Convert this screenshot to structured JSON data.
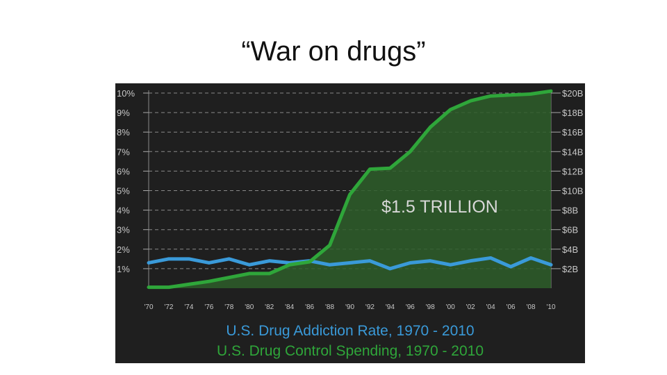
{
  "slide": {
    "title": "“War on drugs”"
  },
  "chart_data": {
    "type": "line",
    "annotation": "$1.5 TRILLION",
    "captions": [
      {
        "text": "U.S. Drug Addiction Rate, 1970 - 2010",
        "color": "#3a9ad9"
      },
      {
        "text": "U.S. Drug Control Spending, 1970 - 2010",
        "color": "#2fa63a"
      }
    ],
    "x": [
      "'70",
      "'72",
      "'74",
      "'76",
      "'78",
      "'80",
      "'82",
      "'84",
      "'86",
      "'88",
      "'90",
      "'92",
      "'94",
      "'96",
      "'98",
      "'00",
      "'02",
      "'04",
      "'06",
      "'08",
      "'10"
    ],
    "left_axis": {
      "ticks": [
        "1%",
        "2%",
        "3%",
        "4%",
        "5%",
        "6%",
        "7%",
        "8%",
        "9%",
        "10%"
      ],
      "ylim": [
        0,
        10
      ]
    },
    "right_axis": {
      "ticks": [
        "$2B",
        "$4B",
        "$6B",
        "$8B",
        "$10B",
        "$12B",
        "$14B",
        "$16B",
        "$18B",
        "$20B"
      ],
      "ylim": [
        0,
        20
      ]
    },
    "grid": true,
    "series": [
      {
        "axis": "left",
        "color": "#3a9ad9",
        "values": [
          1.3,
          1.5,
          1.5,
          1.3,
          1.5,
          1.2,
          1.4,
          1.3,
          1.4,
          1.2,
          1.3,
          1.4,
          1.0,
          1.3,
          1.4,
          1.2,
          1.4,
          1.55,
          1.1,
          1.55,
          1.2
        ]
      },
      {
        "axis": "right",
        "color": "#2fa63a",
        "fill": "#2e5e2a",
        "values": [
          0.1,
          0.1,
          0.4,
          0.7,
          1.1,
          1.5,
          1.5,
          2.4,
          2.7,
          4.4,
          9.6,
          12.2,
          12.3,
          14.0,
          16.5,
          18.3,
          19.2,
          19.7,
          19.8,
          19.9,
          20.2
        ]
      }
    ],
    "colors": {
      "background": "#1f1f1f",
      "grid": "#8a8a8a",
      "axis_text": "#c8c8c8"
    }
  }
}
